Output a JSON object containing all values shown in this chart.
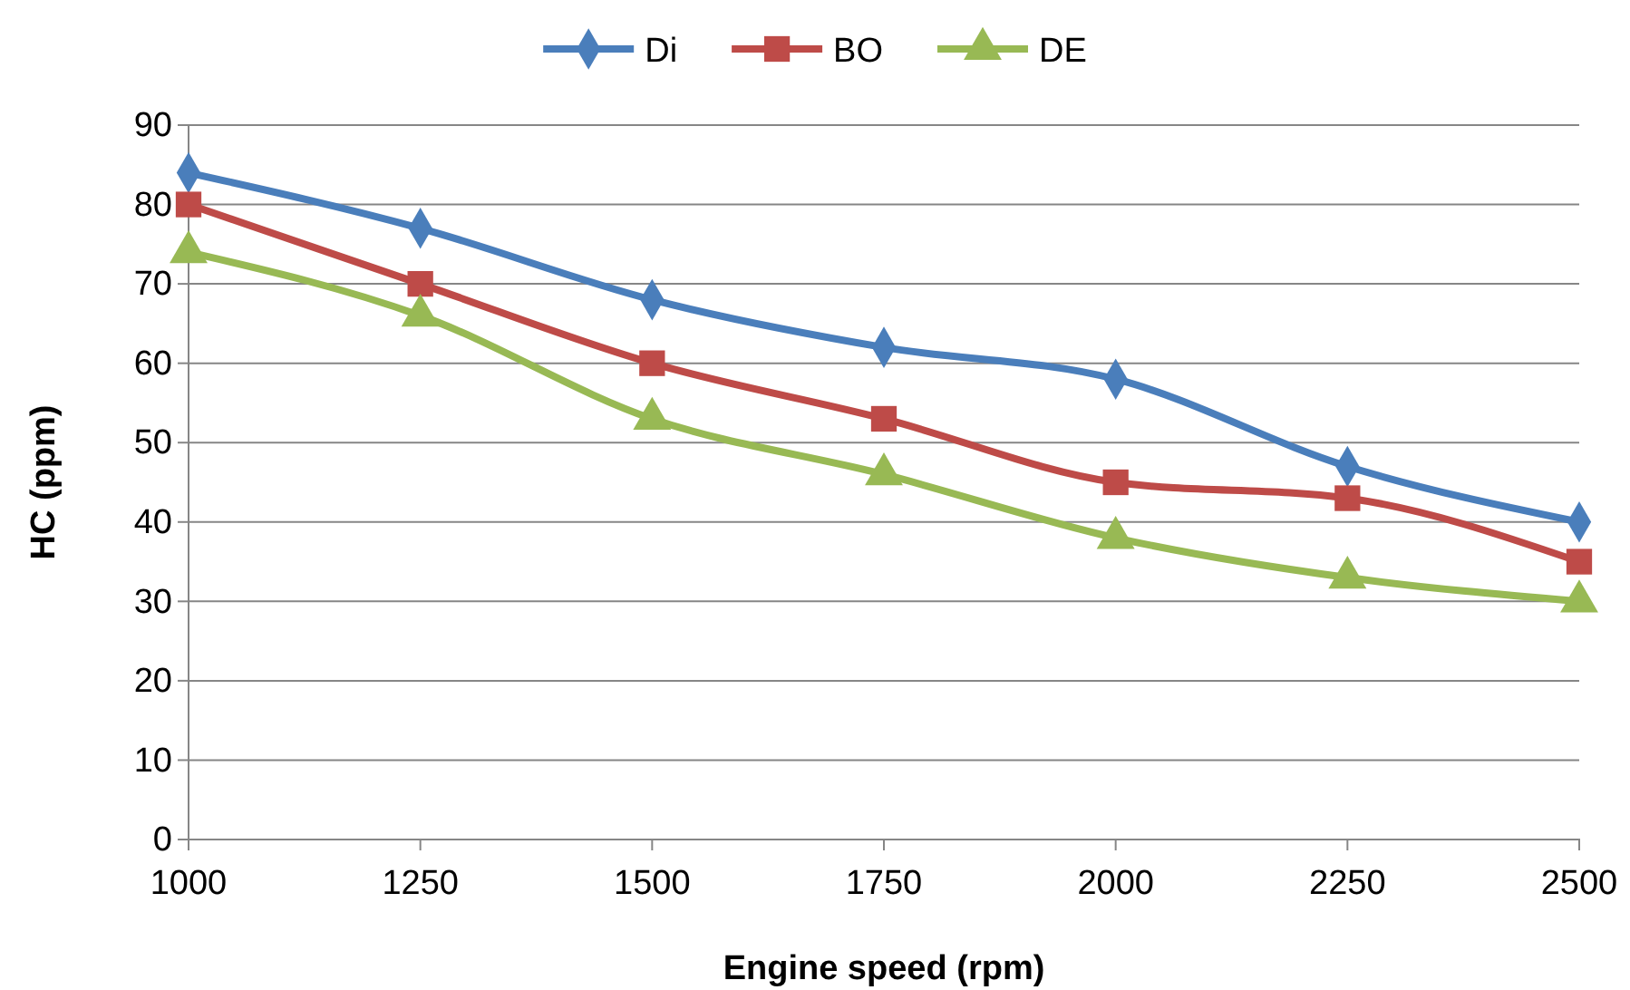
{
  "chart_data": {
    "type": "line",
    "xlabel": "Engine speed (rpm)",
    "ylabel": "HC (ppm)",
    "x": [
      1000,
      1250,
      1500,
      1750,
      2000,
      2250,
      2500
    ],
    "xlim": [
      1000,
      2500
    ],
    "xticks": [
      1000,
      1250,
      1500,
      1750,
      2000,
      2250,
      2500
    ],
    "ylim": [
      0,
      90
    ],
    "yticks": [
      0,
      10,
      20,
      30,
      40,
      50,
      60,
      70,
      80,
      90
    ],
    "grid": "y",
    "legend": "top",
    "line_style": "solid",
    "series": [
      {
        "name": "Di",
        "color": "#4a7ebb",
        "marker": "diamond",
        "values": [
          84,
          77,
          68,
          62,
          58,
          47,
          40
        ]
      },
      {
        "name": "BO",
        "color": "#be4b48",
        "marker": "square",
        "values": [
          80,
          70,
          60,
          53,
          45,
          43,
          35
        ]
      },
      {
        "name": "DE",
        "color": "#98b954",
        "marker": "triangle",
        "values": [
          74,
          66,
          53,
          46,
          38,
          33,
          30
        ]
      }
    ]
  }
}
